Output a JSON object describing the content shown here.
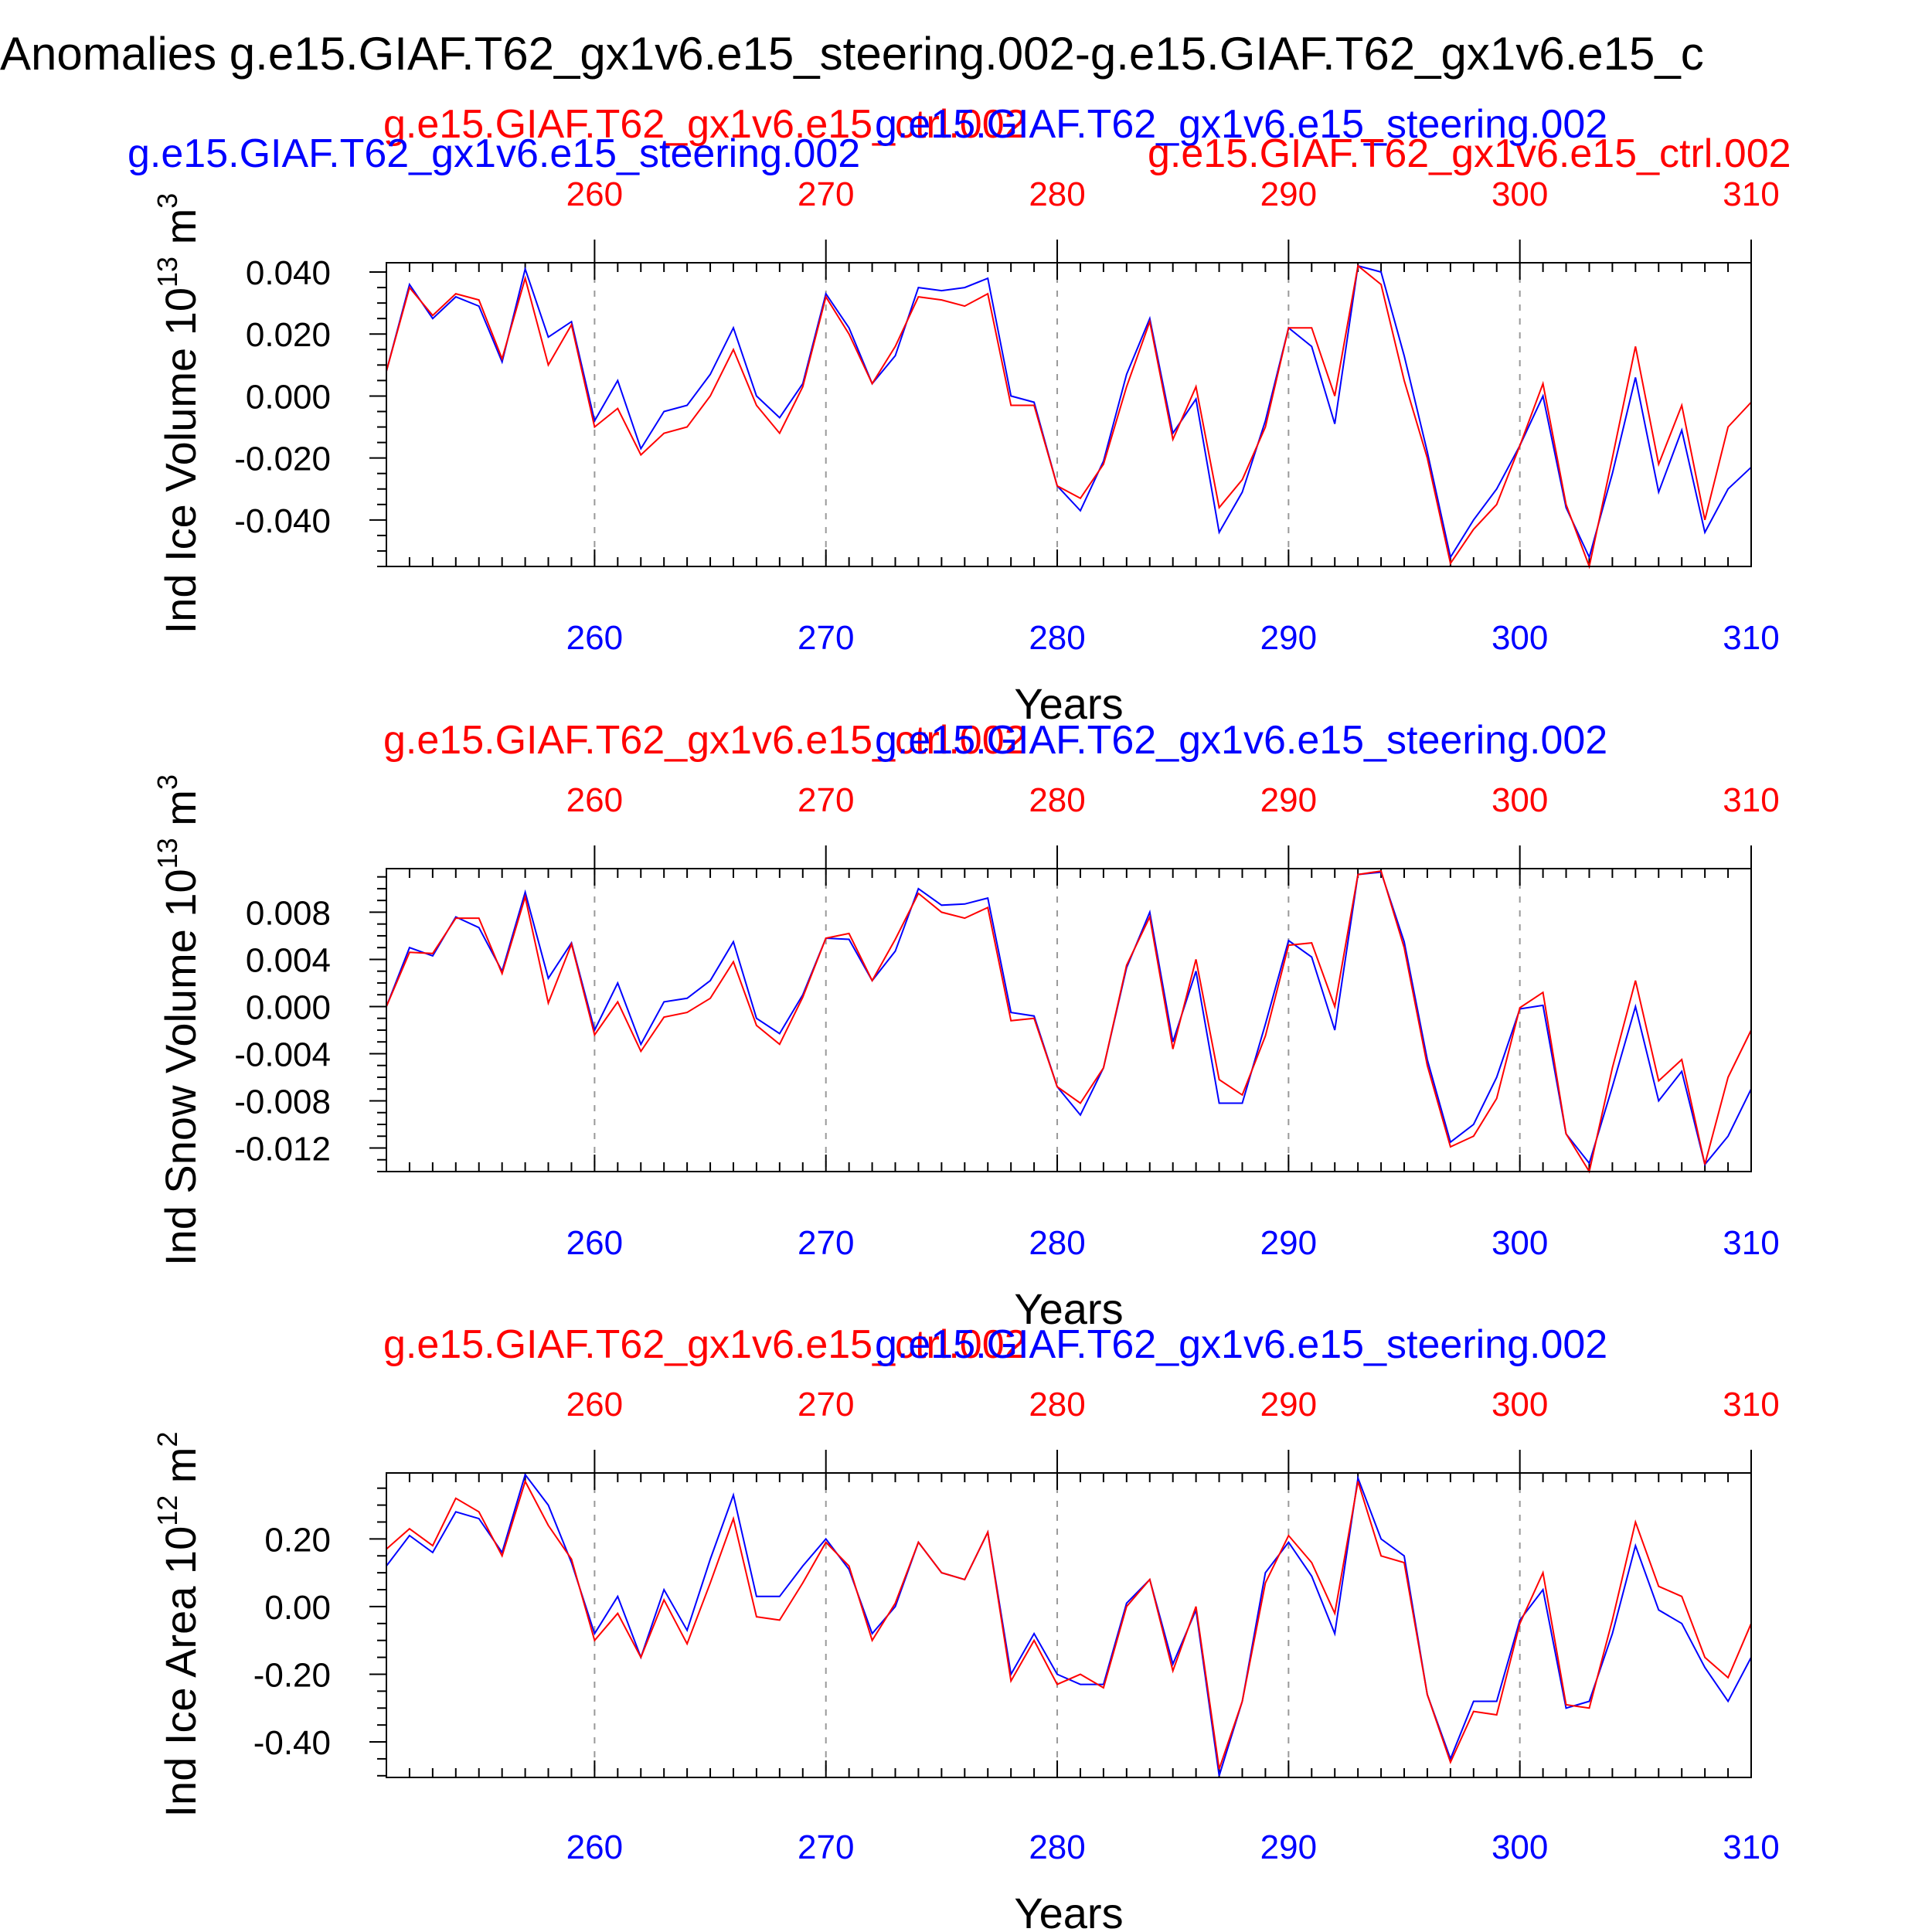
{
  "figure": {
    "title": "Anomalies g.e15.GIAF.T62_gx1v6.e15_steering.002-g.e15.GIAF.T62_gx1v6.e15_c",
    "colors": {
      "series_a": "#0000ff",
      "series_b": "#ff0000",
      "axis": "#000000",
      "grid": "#999999"
    }
  },
  "chart_data": [
    {
      "type": "line",
      "ylabel": "Ind Ice Volume 10",
      "ylabel_exp": "13",
      "ylabel_unit": " m",
      "ylabel_unit_exp": "3",
      "xlabel": "Years",
      "legend_blue": "g.e15.GIAF.T62_gx1v6.e15_steering.002",
      "legend_red": "g.e15.GIAF.T62_gx1v6.e15_ctrl.002",
      "legend_blue_left": "g.e15.GIAF.T62_gx1v6.e15_steering.002",
      "legend_red_right": "g.e15.GIAF.T62_gx1v6.e15_ctrl.002",
      "xlim": [
        251,
        310
      ],
      "ylim": [
        -0.055,
        0.043
      ],
      "xticks": [
        260,
        270,
        280,
        290,
        300,
        310
      ],
      "yticks": [
        0.04,
        0.02,
        0.0,
        -0.02,
        -0.04
      ],
      "ytick_labels": [
        "0.040",
        "0.020",
        "0.000",
        "-0.020",
        "-0.040"
      ],
      "x": [
        251,
        252,
        253,
        254,
        255,
        256,
        257,
        258,
        259,
        260,
        261,
        262,
        263,
        264,
        265,
        266,
        267,
        268,
        269,
        270,
        271,
        272,
        273,
        274,
        275,
        276,
        277,
        278,
        279,
        280,
        281,
        282,
        283,
        284,
        285,
        286,
        287,
        288,
        289,
        290,
        291,
        292,
        293,
        294,
        295,
        296,
        297,
        298,
        299,
        300,
        301,
        302,
        303,
        304,
        305,
        306,
        307,
        308,
        309,
        310
      ],
      "series": [
        {
          "name": "g.e15.GIAF.T62_gx1v6.e15_steering.002",
          "color": "#0000ff",
          "values": [
            0.008,
            0.036,
            0.025,
            0.032,
            0.029,
            0.011,
            0.041,
            0.019,
            0.024,
            -0.008,
            0.005,
            -0.017,
            -0.005,
            -0.003,
            0.007,
            0.022,
            0.0,
            -0.007,
            0.004,
            0.033,
            0.022,
            0.004,
            0.013,
            0.035,
            0.034,
            0.035,
            0.038,
            0.0,
            -0.002,
            -0.029,
            -0.037,
            -0.021,
            0.007,
            0.025,
            -0.012,
            -0.001,
            -0.044,
            -0.031,
            -0.008,
            0.022,
            0.016,
            -0.009,
            0.042,
            0.04,
            0.013,
            -0.018,
            -0.052,
            -0.04,
            -0.03,
            -0.016,
            0.0,
            -0.036,
            -0.052,
            -0.025,
            0.006,
            -0.031,
            -0.011,
            -0.044,
            -0.03,
            -0.023
          ]
        },
        {
          "name": "g.e15.GIAF.T62_gx1v6.e15_ctrl.002",
          "color": "#ff0000",
          "values": [
            0.008,
            0.035,
            0.026,
            0.033,
            0.031,
            0.012,
            0.038,
            0.01,
            0.023,
            -0.01,
            -0.004,
            -0.019,
            -0.012,
            -0.01,
            0.0,
            0.015,
            -0.003,
            -0.012,
            0.003,
            0.032,
            0.02,
            0.004,
            0.016,
            0.032,
            0.031,
            0.029,
            0.033,
            -0.003,
            -0.003,
            -0.029,
            -0.033,
            -0.022,
            0.003,
            0.024,
            -0.014,
            0.003,
            -0.036,
            -0.027,
            -0.01,
            0.022,
            0.022,
            0.0,
            0.042,
            0.036,
            0.005,
            -0.02,
            -0.054,
            -0.043,
            -0.035,
            -0.016,
            0.004,
            -0.035,
            -0.055,
            -0.02,
            0.016,
            -0.022,
            -0.003,
            -0.04,
            -0.01,
            -0.002
          ]
        }
      ]
    },
    {
      "type": "line",
      "ylabel": "Ind Snow Volume 10",
      "ylabel_exp": "13",
      "ylabel_unit": " m",
      "ylabel_unit_exp": "3",
      "xlabel": "Years",
      "legend_blue": "g.e15.GIAF.T62_gx1v6.e15_steering.002",
      "legend_red": "g.e15.GIAF.T62_gx1v6.e15_ctrl.002",
      "xlim": [
        251,
        310
      ],
      "ylim": [
        -0.014,
        0.0117
      ],
      "xticks": [
        260,
        270,
        280,
        290,
        300,
        310
      ],
      "yticks": [
        0.008,
        0.004,
        0.0,
        -0.004,
        -0.008,
        -0.012
      ],
      "ytick_labels": [
        "0.008",
        "0.004",
        "0.000",
        "-0.004",
        "-0.008",
        "-0.012"
      ],
      "x": [
        251,
        252,
        253,
        254,
        255,
        256,
        257,
        258,
        259,
        260,
        261,
        262,
        263,
        264,
        265,
        266,
        267,
        268,
        269,
        270,
        271,
        272,
        273,
        274,
        275,
        276,
        277,
        278,
        279,
        280,
        281,
        282,
        283,
        284,
        285,
        286,
        287,
        288,
        289,
        290,
        291,
        292,
        293,
        294,
        295,
        296,
        297,
        298,
        299,
        300,
        301,
        302,
        303,
        304,
        305,
        306,
        307,
        308,
        309,
        310
      ],
      "series": [
        {
          "name": "g.e15.GIAF.T62_gx1v6.e15_steering.002",
          "color": "#0000ff",
          "values": [
            0.0,
            0.005,
            0.0043,
            0.0076,
            0.0067,
            0.003,
            0.0097,
            0.0024,
            0.0054,
            -0.002,
            0.002,
            -0.0032,
            0.0004,
            0.0007,
            0.0022,
            0.0055,
            -0.001,
            -0.0023,
            0.001,
            0.0058,
            0.0057,
            0.0022,
            0.0047,
            0.01,
            0.0086,
            0.0087,
            0.0092,
            -0.0005,
            -0.0008,
            -0.0068,
            -0.0092,
            -0.0052,
            0.0033,
            0.008,
            -0.003,
            0.003,
            -0.0082,
            -0.0082,
            -0.0015,
            0.0056,
            0.0042,
            -0.002,
            0.0112,
            0.0114,
            0.0055,
            -0.0045,
            -0.0115,
            -0.01,
            -0.006,
            -0.0002,
            0.0001,
            -0.0108,
            -0.0133,
            -0.0068,
            0.0,
            -0.008,
            -0.0055,
            -0.0134,
            -0.011,
            -0.007
          ]
        },
        {
          "name": "g.e15.GIAF.T62_gx1v6.e15_ctrl.002",
          "color": "#ff0000",
          "values": [
            0.0,
            0.0046,
            0.0045,
            0.0075,
            0.0075,
            0.0028,
            0.0093,
            0.0003,
            0.0053,
            -0.0024,
            0.0004,
            -0.0038,
            -0.0009,
            -0.0005,
            0.0007,
            0.0038,
            -0.0016,
            -0.0032,
            0.0008,
            0.0058,
            0.0062,
            0.0022,
            0.0057,
            0.0096,
            0.008,
            0.0075,
            0.0084,
            -0.0012,
            -0.001,
            -0.0068,
            -0.0082,
            -0.0052,
            0.0035,
            0.0076,
            -0.0036,
            0.004,
            -0.0062,
            -0.0075,
            -0.0025,
            0.0052,
            0.0054,
            0.0,
            0.0112,
            0.0115,
            0.005,
            -0.005,
            -0.0119,
            -0.011,
            -0.0078,
            -0.0001,
            0.0012,
            -0.0108,
            -0.014,
            -0.0052,
            0.0022,
            -0.0063,
            -0.0045,
            -0.0134,
            -0.006,
            -0.002
          ]
        }
      ]
    },
    {
      "type": "line",
      "ylabel": "Ind Ice Area 10",
      "ylabel_exp": "12",
      "ylabel_unit": " m",
      "ylabel_unit_exp": "2",
      "xlabel": "Years",
      "legend_blue": "g.e15.GIAF.T62_gx1v6.e15_steering.002",
      "legend_red": "g.e15.GIAF.T62_gx1v6.e15_ctrl.002",
      "xlim": [
        251,
        310
      ],
      "ylim": [
        -0.505,
        0.395
      ],
      "xticks": [
        260,
        270,
        280,
        290,
        300,
        310
      ],
      "yticks": [
        0.2,
        0.0,
        -0.2,
        -0.4
      ],
      "ytick_labels": [
        "0.20",
        "0.00",
        "-0.20",
        "-0.40"
      ],
      "x": [
        251,
        252,
        253,
        254,
        255,
        256,
        257,
        258,
        259,
        260,
        261,
        262,
        263,
        264,
        265,
        266,
        267,
        268,
        269,
        270,
        271,
        272,
        273,
        274,
        275,
        276,
        277,
        278,
        279,
        280,
        281,
        282,
        283,
        284,
        285,
        286,
        287,
        288,
        289,
        290,
        291,
        292,
        293,
        294,
        295,
        296,
        297,
        298,
        299,
        300,
        301,
        302,
        303,
        304,
        305,
        306,
        307,
        308,
        309,
        310
      ],
      "series": [
        {
          "name": "g.e15.GIAF.T62_gx1v6.e15_steering.002",
          "color": "#0000ff",
          "values": [
            0.12,
            0.21,
            0.16,
            0.28,
            0.26,
            0.16,
            0.39,
            0.3,
            0.13,
            -0.08,
            0.03,
            -0.15,
            0.05,
            -0.07,
            0.14,
            0.33,
            0.03,
            0.03,
            0.12,
            0.2,
            0.11,
            -0.08,
            0.0,
            0.19,
            0.1,
            0.08,
            0.22,
            -0.2,
            -0.08,
            -0.2,
            -0.23,
            -0.23,
            0.01,
            0.08,
            -0.17,
            -0.01,
            -0.5,
            -0.28,
            0.1,
            0.19,
            0.09,
            -0.08,
            0.38,
            0.2,
            0.15,
            -0.26,
            -0.45,
            -0.28,
            -0.28,
            -0.04,
            0.05,
            -0.3,
            -0.28,
            -0.08,
            0.18,
            -0.01,
            -0.05,
            -0.18,
            -0.28,
            -0.15
          ]
        },
        {
          "name": "g.e15.GIAF.T62_gx1v6.e15_ctrl.002",
          "color": "#ff0000",
          "values": [
            0.17,
            0.23,
            0.18,
            0.32,
            0.28,
            0.15,
            0.37,
            0.24,
            0.14,
            -0.1,
            -0.02,
            -0.15,
            0.02,
            -0.11,
            0.07,
            0.26,
            -0.03,
            -0.04,
            0.07,
            0.19,
            0.12,
            -0.1,
            0.01,
            0.19,
            0.1,
            0.08,
            0.22,
            -0.22,
            -0.1,
            -0.23,
            -0.2,
            -0.24,
            0.0,
            0.08,
            -0.19,
            0.0,
            -0.48,
            -0.28,
            0.07,
            0.21,
            0.13,
            -0.02,
            0.37,
            0.15,
            0.13,
            -0.26,
            -0.46,
            -0.31,
            -0.32,
            -0.05,
            0.1,
            -0.29,
            -0.3,
            -0.04,
            0.25,
            0.06,
            0.03,
            -0.15,
            -0.21,
            -0.05
          ]
        }
      ]
    }
  ]
}
